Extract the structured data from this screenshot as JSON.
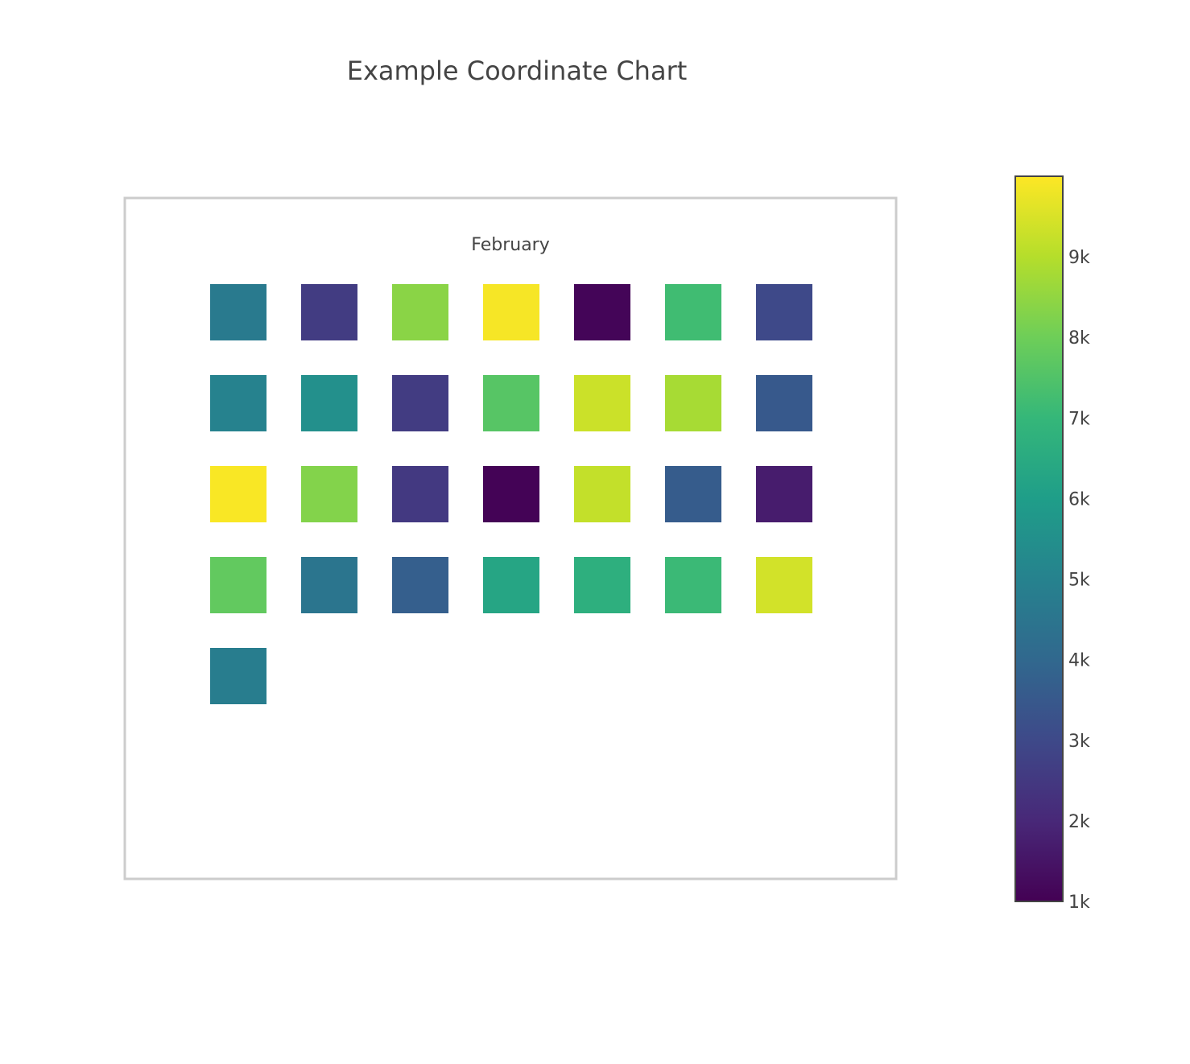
{
  "chart_data": {
    "type": "heatmap",
    "title": "Example Coordinate Chart",
    "panel_title": "February",
    "grid": false,
    "legend": "right",
    "colorscale": "viridis",
    "colorbar": {
      "range": [
        1000,
        10000
      ],
      "tick_values": [
        1000,
        2000,
        3000,
        4000,
        5000,
        6000,
        7000,
        8000,
        9000
      ],
      "tick_labels": [
        "1k",
        "2k",
        "3k",
        "4k",
        "5k",
        "6k",
        "7k",
        "8k",
        "9k"
      ]
    },
    "columns": 7,
    "values": [
      [
        4700,
        2600,
        8400,
        9900,
        1100,
        7200,
        3000
      ],
      [
        5000,
        5500,
        2600,
        7600,
        9300,
        8800,
        3500
      ],
      [
        9950,
        8300,
        2500,
        1050,
        9200,
        3600,
        1700
      ],
      [
        7800,
        4500,
        3700,
        6300,
        6700,
        7100,
        9400
      ],
      [
        4800
      ]
    ]
  }
}
